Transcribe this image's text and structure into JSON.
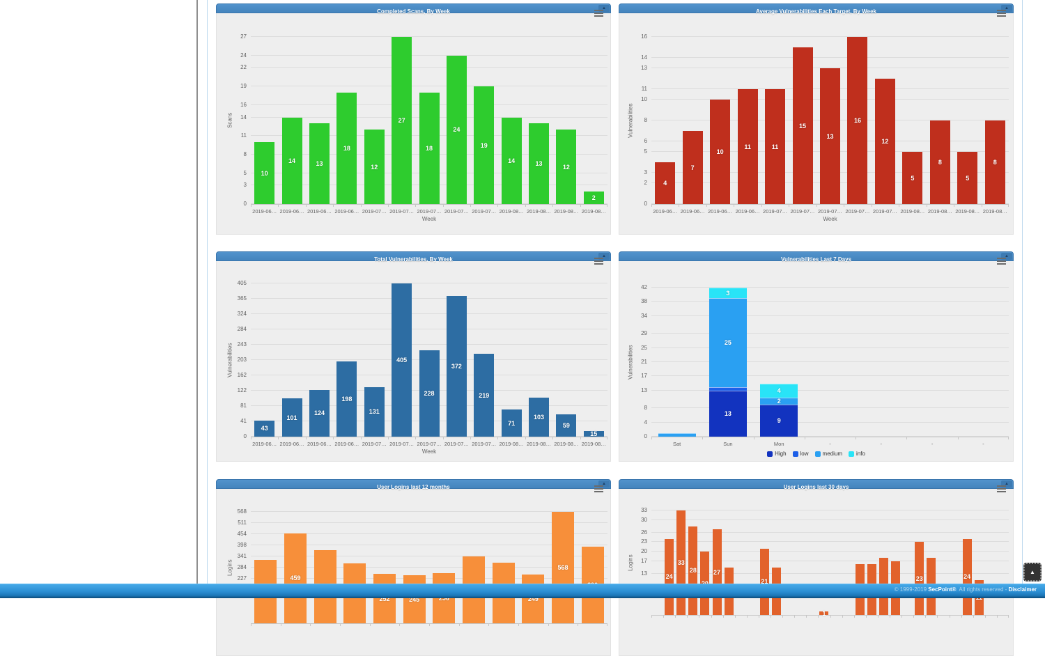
{
  "page": {
    "footer": {
      "copyright": "© 1999-2019 ",
      "brand": "SecPoint®",
      "rights": ". All rights reserved - ",
      "disclaimer": "Disclaimer"
    },
    "scroll_top_icon": "▲",
    "collapse_icon": "▲",
    "menu_icon": "hamburger-menu"
  },
  "chart_data": [
    {
      "type": "bar",
      "title": "Completed Scans, By Week",
      "xlabel": "Week",
      "ylabel": "Scans",
      "color": "#2ecc2e",
      "categories": [
        "2019-06…",
        "2019-06…",
        "2019-06…",
        "2019-06…",
        "2019-07…",
        "2019-07…",
        "2019-07…",
        "2019-07…",
        "2019-07…",
        "2019-08…",
        "2019-08…",
        "2019-08…",
        "2019-08…"
      ],
      "values": [
        10,
        14,
        13,
        18,
        12,
        27,
        18,
        24,
        19,
        14,
        13,
        12,
        2
      ],
      "yticks": [
        0,
        3,
        5,
        8,
        11,
        14,
        16,
        19,
        22,
        24,
        27
      ],
      "ymax": 27,
      "grid": true,
      "legend": false
    },
    {
      "type": "bar",
      "title": "Average Vulnerabilities Each Target, By Week",
      "xlabel": "Week",
      "ylabel": "Vulnerabilities",
      "color": "#bf2f1d",
      "categories": [
        "2019-06…",
        "2019-06…",
        "2019-06…",
        "2019-06…",
        "2019-07…",
        "2019-07…",
        "2019-07…",
        "2019-07…",
        "2019-07…",
        "2019-08…",
        "2019-08…",
        "2019-08…",
        "2019-08…"
      ],
      "values": [
        4,
        7,
        10,
        11,
        11,
        15,
        13,
        16,
        12,
        5,
        8,
        5,
        8
      ],
      "yticks": [
        0,
        2,
        3,
        5,
        6,
        8,
        10,
        11,
        13,
        14,
        16
      ],
      "ymax": 16,
      "grid": true,
      "legend": false
    },
    {
      "type": "bar",
      "title": "Total Vulnerabilities, By Week",
      "xlabel": "Week",
      "ylabel": "Vulnerabilities",
      "color": "#2d6da3",
      "categories": [
        "2019-06…",
        "2019-06…",
        "2019-06…",
        "2019-06…",
        "2019-07…",
        "2019-07…",
        "2019-07…",
        "2019-07…",
        "2019-07…",
        "2019-08…",
        "2019-08…",
        "2019-08…",
        "2019-08…"
      ],
      "values": [
        43,
        101,
        124,
        198,
        131,
        405,
        228,
        372,
        219,
        71,
        103,
        59,
        15
      ],
      "yticks": [
        0,
        41,
        81,
        122,
        162,
        203,
        243,
        284,
        324,
        365,
        405
      ],
      "ymax": 405,
      "grid": true,
      "legend": false
    },
    {
      "type": "stacked-bar",
      "title": "Vulnerabilities Last 7 Days",
      "xlabel": "",
      "ylabel": "Vulnerabilities",
      "categories": [
        "Sat",
        "Sun",
        "Mon",
        "-",
        "-",
        "-",
        "-"
      ],
      "series": [
        {
          "name": "High",
          "color": "#1233bf",
          "values": [
            0,
            13,
            9,
            0,
            0,
            0,
            0
          ]
        },
        {
          "name": "low",
          "color": "#1d5fe8",
          "values": [
            0,
            1,
            0,
            0,
            0,
            0,
            0
          ]
        },
        {
          "name": "medium",
          "color": "#2aa0f2",
          "values": [
            1,
            25,
            2,
            0,
            0,
            0,
            0
          ]
        },
        {
          "name": "info",
          "color": "#29e4f7",
          "values": [
            0,
            3,
            4,
            0,
            0,
            0,
            0
          ]
        }
      ],
      "yticks": [
        0,
        4,
        8,
        13,
        17,
        21,
        25,
        29,
        34,
        38,
        42
      ],
      "ymax": 42,
      "grid": true,
      "legend": true,
      "legend_position": "bottom-center"
    },
    {
      "type": "bar",
      "title": "User Logins last 12 months",
      "xlabel": "",
      "ylabel": "Logins",
      "color": "#f78f3a",
      "categories": [
        "",
        "",
        "",
        "",
        "",
        "",
        "",
        "",
        "",
        "",
        "",
        ""
      ],
      "values": [
        323,
        459,
        373,
        305,
        252,
        245,
        256,
        340,
        309,
        249,
        568,
        390
      ],
      "yticks": [
        227,
        284,
        341,
        398,
        454,
        511,
        568
      ],
      "ymax": 568,
      "grid": true,
      "legend": false,
      "note": "lower part of chart cut off by viewport; only labels 459 and 568 visible"
    },
    {
      "type": "bar",
      "title": "User Logins last 30 days",
      "xlabel": "",
      "ylabel": "Logins",
      "color": "#e2622b",
      "categories": [
        "",
        "",
        "",
        "",
        "",
        "",
        "",
        "",
        "",
        "",
        "",
        "",
        "",
        "",
        "",
        "",
        "",
        "",
        "",
        "",
        "",
        "",
        "",
        "",
        "",
        "",
        "",
        "",
        "",
        ""
      ],
      "values": [
        0,
        24,
        33,
        28,
        20,
        27,
        15,
        0,
        0,
        21,
        15,
        0,
        0,
        0,
        1,
        0,
        0,
        16,
        16,
        18,
        17,
        0,
        23,
        18,
        0,
        0,
        24,
        11,
        0,
        0
      ],
      "yticks": [
        13,
        17,
        20,
        23,
        26,
        30,
        33
      ],
      "ymax": 33,
      "grid": true,
      "legend": false,
      "note": "lower part of chart cut off by viewport"
    }
  ]
}
